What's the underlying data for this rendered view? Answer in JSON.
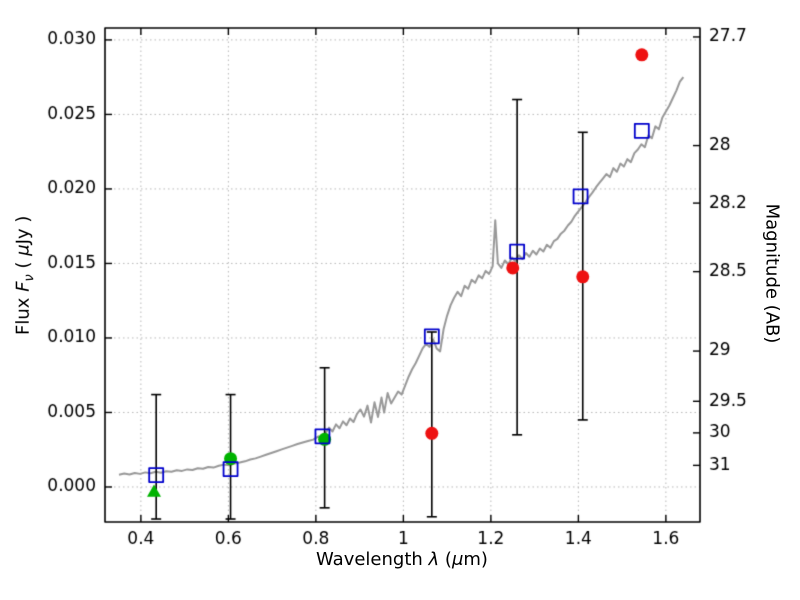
{
  "figure": {
    "background": "#ffffff",
    "axes": {
      "ylabel": {
        "prefix": "Flux  ",
        "f": "F",
        "sub": "ν",
        "open": "  ( ",
        "mu": "μ",
        "close": "Jy )"
      },
      "xlabel": {
        "prefix": "Wavelength  ",
        "lambda": "λ",
        "open": " (",
        "mu": "μ",
        "close": "m)"
      },
      "y2label": "Magnitude (AB)"
    }
  },
  "chart_data": {
    "type": "line",
    "title": "",
    "xlabel": "Wavelength λ (μm)",
    "ylabel": "Flux Fν ( μJy )",
    "y2label": "Magnitude (AB)",
    "xlim": [
      0.318,
      1.678
    ],
    "ylim": [
      -0.00235,
      0.0308
    ],
    "grid": true,
    "legend": "none",
    "colors": {
      "spectrum": "#999999",
      "model_square": "#0000cc",
      "observed_red": "#ee1111",
      "observed_green": "#00b300",
      "errorbar": "#000000",
      "grid": "#b8b8b8",
      "frame": "#000000"
    },
    "x_ticks": [
      {
        "v": 0.4,
        "label": "0.4"
      },
      {
        "v": 0.6,
        "label": "0.6"
      },
      {
        "v": 0.8,
        "label": "0.8"
      },
      {
        "v": 1.0,
        "label": "1"
      },
      {
        "v": 1.2,
        "label": "1.2"
      },
      {
        "v": 1.4,
        "label": "1.4"
      },
      {
        "v": 1.6,
        "label": "1.6"
      }
    ],
    "y_ticks": [
      {
        "v": 0.0,
        "label": "0.000"
      },
      {
        "v": 0.005,
        "label": "0.005"
      },
      {
        "v": 0.01,
        "label": "0.010"
      },
      {
        "v": 0.015,
        "label": "0.015"
      },
      {
        "v": 0.02,
        "label": "0.020"
      },
      {
        "v": 0.025,
        "label": "0.025"
      },
      {
        "v": 0.03,
        "label": "0.030"
      }
    ],
    "y2_ticks": [
      {
        "v": 0.0302,
        "label": "27.7"
      },
      {
        "v": 0.02291,
        "label": "28"
      },
      {
        "v": 0.01905,
        "label": "28.2"
      },
      {
        "v": 0.01445,
        "label": "28.5"
      },
      {
        "v": 0.00912,
        "label": "29"
      },
      {
        "v": 0.00575,
        "label": "29.5"
      },
      {
        "v": 0.00363,
        "label": "30"
      },
      {
        "v": 0.00145,
        "label": "31"
      }
    ],
    "series": [
      {
        "name": "model-spectrum",
        "kind": "line",
        "color": "#999999",
        "linewidth": 2,
        "points": [
          [
            0.35,
            0.00082
          ],
          [
            0.362,
            0.0009
          ],
          [
            0.374,
            0.00084
          ],
          [
            0.386,
            0.00094
          ],
          [
            0.398,
            0.00088
          ],
          [
            0.41,
            0.00098
          ],
          [
            0.422,
            0.00092
          ],
          [
            0.434,
            0.00102
          ],
          [
            0.446,
            0.00096
          ],
          [
            0.458,
            0.00106
          ],
          [
            0.47,
            0.00102
          ],
          [
            0.482,
            0.00112
          ],
          [
            0.494,
            0.00108
          ],
          [
            0.506,
            0.00118
          ],
          [
            0.518,
            0.00114
          ],
          [
            0.53,
            0.00126
          ],
          [
            0.542,
            0.00122
          ],
          [
            0.554,
            0.00134
          ],
          [
            0.566,
            0.0013
          ],
          [
            0.578,
            0.00142
          ],
          [
            0.59,
            0.0015
          ],
          [
            0.602,
            0.00146
          ],
          [
            0.614,
            0.00158
          ],
          [
            0.626,
            0.00164
          ],
          [
            0.638,
            0.00172
          ],
          [
            0.65,
            0.00184
          ],
          [
            0.662,
            0.00192
          ],
          [
            0.674,
            0.00204
          ],
          [
            0.686,
            0.00216
          ],
          [
            0.698,
            0.00228
          ],
          [
            0.71,
            0.0024
          ],
          [
            0.722,
            0.00252
          ],
          [
            0.734,
            0.00264
          ],
          [
            0.746,
            0.00276
          ],
          [
            0.758,
            0.00288
          ],
          [
            0.77,
            0.00298
          ],
          [
            0.782,
            0.00308
          ],
          [
            0.794,
            0.00318
          ],
          [
            0.806,
            0.0034
          ],
          [
            0.814,
            0.00316
          ],
          [
            0.822,
            0.0036
          ],
          [
            0.83,
            0.00398
          ],
          [
            0.838,
            0.00372
          ],
          [
            0.846,
            0.0042
          ],
          [
            0.854,
            0.00394
          ],
          [
            0.862,
            0.0044
          ],
          [
            0.87,
            0.00414
          ],
          [
            0.878,
            0.0046
          ],
          [
            0.886,
            0.00436
          ],
          [
            0.894,
            0.0049
          ],
          [
            0.902,
            0.0052
          ],
          [
            0.91,
            0.00472
          ],
          [
            0.918,
            0.00546
          ],
          [
            0.926,
            0.00432
          ],
          [
            0.934,
            0.00568
          ],
          [
            0.942,
            0.0047
          ],
          [
            0.95,
            0.006
          ],
          [
            0.956,
            0.005
          ],
          [
            0.964,
            0.0063
          ],
          [
            0.972,
            0.0056
          ],
          [
            0.98,
            0.006
          ],
          [
            0.988,
            0.0064
          ],
          [
            0.996,
            0.0062
          ],
          [
            1.004,
            0.0068
          ],
          [
            1.012,
            0.0074
          ],
          [
            1.02,
            0.0079
          ],
          [
            1.028,
            0.0083
          ],
          [
            1.036,
            0.0088
          ],
          [
            1.044,
            0.0093
          ],
          [
            1.052,
            0.0096
          ],
          [
            1.06,
            0.0094
          ],
          [
            1.068,
            0.0099
          ],
          [
            1.076,
            0.0093
          ],
          [
            1.084,
            0.0091
          ],
          [
            1.092,
            0.0106
          ],
          [
            1.1,
            0.0115
          ],
          [
            1.108,
            0.0122
          ],
          [
            1.116,
            0.0127
          ],
          [
            1.124,
            0.0131
          ],
          [
            1.132,
            0.0128
          ],
          [
            1.14,
            0.0135
          ],
          [
            1.148,
            0.0133
          ],
          [
            1.156,
            0.0139
          ],
          [
            1.164,
            0.0137
          ],
          [
            1.172,
            0.0142
          ],
          [
            1.18,
            0.014
          ],
          [
            1.188,
            0.0145
          ],
          [
            1.196,
            0.0143
          ],
          [
            1.204,
            0.0148
          ],
          [
            1.21,
            0.0179
          ],
          [
            1.216,
            0.015
          ],
          [
            1.224,
            0.0147
          ],
          [
            1.232,
            0.0152
          ],
          [
            1.24,
            0.01495
          ],
          [
            1.248,
            0.0154
          ],
          [
            1.256,
            0.01515
          ],
          [
            1.264,
            0.01555
          ],
          [
            1.272,
            0.0153
          ],
          [
            1.28,
            0.0157
          ],
          [
            1.288,
            0.01545
          ],
          [
            1.296,
            0.01585
          ],
          [
            1.304,
            0.0156
          ],
          [
            1.312,
            0.016
          ],
          [
            1.32,
            0.0158
          ],
          [
            1.328,
            0.01625
          ],
          [
            1.336,
            0.01605
          ],
          [
            1.344,
            0.0165
          ],
          [
            1.352,
            0.01665
          ],
          [
            1.36,
            0.017
          ],
          [
            1.368,
            0.0172
          ],
          [
            1.376,
            0.01755
          ],
          [
            1.384,
            0.0178
          ],
          [
            1.392,
            0.0182
          ],
          [
            1.4,
            0.0185
          ],
          [
            1.408,
            0.0188
          ],
          [
            1.416,
            0.0191
          ],
          [
            1.424,
            0.01945
          ],
          [
            1.432,
            0.01975
          ],
          [
            1.44,
            0.0201
          ],
          [
            1.448,
            0.0204
          ],
          [
            1.456,
            0.0207
          ],
          [
            1.464,
            0.021
          ],
          [
            1.472,
            0.0208
          ],
          [
            1.48,
            0.0214
          ],
          [
            1.488,
            0.02115
          ],
          [
            1.496,
            0.0217
          ],
          [
            1.504,
            0.0215
          ],
          [
            1.512,
            0.022
          ],
          [
            1.52,
            0.0218
          ],
          [
            1.528,
            0.0224
          ],
          [
            1.536,
            0.02265
          ],
          [
            1.544,
            0.023
          ],
          [
            1.552,
            0.0228
          ],
          [
            1.56,
            0.0236
          ],
          [
            1.568,
            0.0234
          ],
          [
            1.576,
            0.0242
          ],
          [
            1.584,
            0.024
          ],
          [
            1.592,
            0.0248
          ],
          [
            1.6,
            0.0252
          ],
          [
            1.608,
            0.0256
          ],
          [
            1.616,
            0.0261
          ],
          [
            1.624,
            0.0266
          ],
          [
            1.632,
            0.0272
          ],
          [
            1.64,
            0.0275
          ]
        ]
      },
      {
        "name": "error-bars",
        "kind": "errorbar",
        "color": "#000000",
        "linewidth": 1.6,
        "capsize": 5,
        "bars": [
          {
            "x": 0.435,
            "ylow": -0.00215,
            "yhigh": 0.0062
          },
          {
            "x": 0.605,
            "ylow": -0.00215,
            "yhigh": 0.0062
          },
          {
            "x": 0.82,
            "ylow": -0.0014,
            "yhigh": 0.008
          },
          {
            "x": 1.065,
            "ylow": -0.002,
            "yhigh": 0.0104
          },
          {
            "x": 1.26,
            "ylow": 0.0035,
            "yhigh": 0.026
          },
          {
            "x": 1.41,
            "ylow": 0.0045,
            "yhigh": 0.0238
          }
        ]
      },
      {
        "name": "observed-photometry-green",
        "kind": "circle",
        "color": "#00b300",
        "radius": 6.5,
        "points": [
          [
            0.605,
            0.0019
          ],
          [
            0.82,
            0.0032
          ]
        ]
      },
      {
        "name": "upper-limit-triangle",
        "kind": "triangle-up",
        "color": "#00b300",
        "size": 7,
        "points": [
          [
            0.43,
            -0.0003
          ]
        ]
      },
      {
        "name": "observed-photometry-red",
        "kind": "circle",
        "color": "#ee1111",
        "radius": 6.5,
        "points": [
          [
            1.065,
            0.0036
          ],
          [
            1.25,
            0.0147
          ],
          [
            1.41,
            0.0141
          ],
          [
            1.545,
            0.029
          ]
        ]
      },
      {
        "name": "model-photometry",
        "kind": "open-square",
        "color": "#0000cc",
        "size": 14,
        "linewidth": 1.8,
        "points": [
          [
            0.435,
            0.0008
          ],
          [
            0.605,
            0.0012
          ],
          [
            0.815,
            0.0034
          ],
          [
            1.065,
            0.0101
          ],
          [
            1.26,
            0.0158
          ],
          [
            1.405,
            0.0195
          ],
          [
            1.545,
            0.0239
          ]
        ]
      }
    ]
  }
}
